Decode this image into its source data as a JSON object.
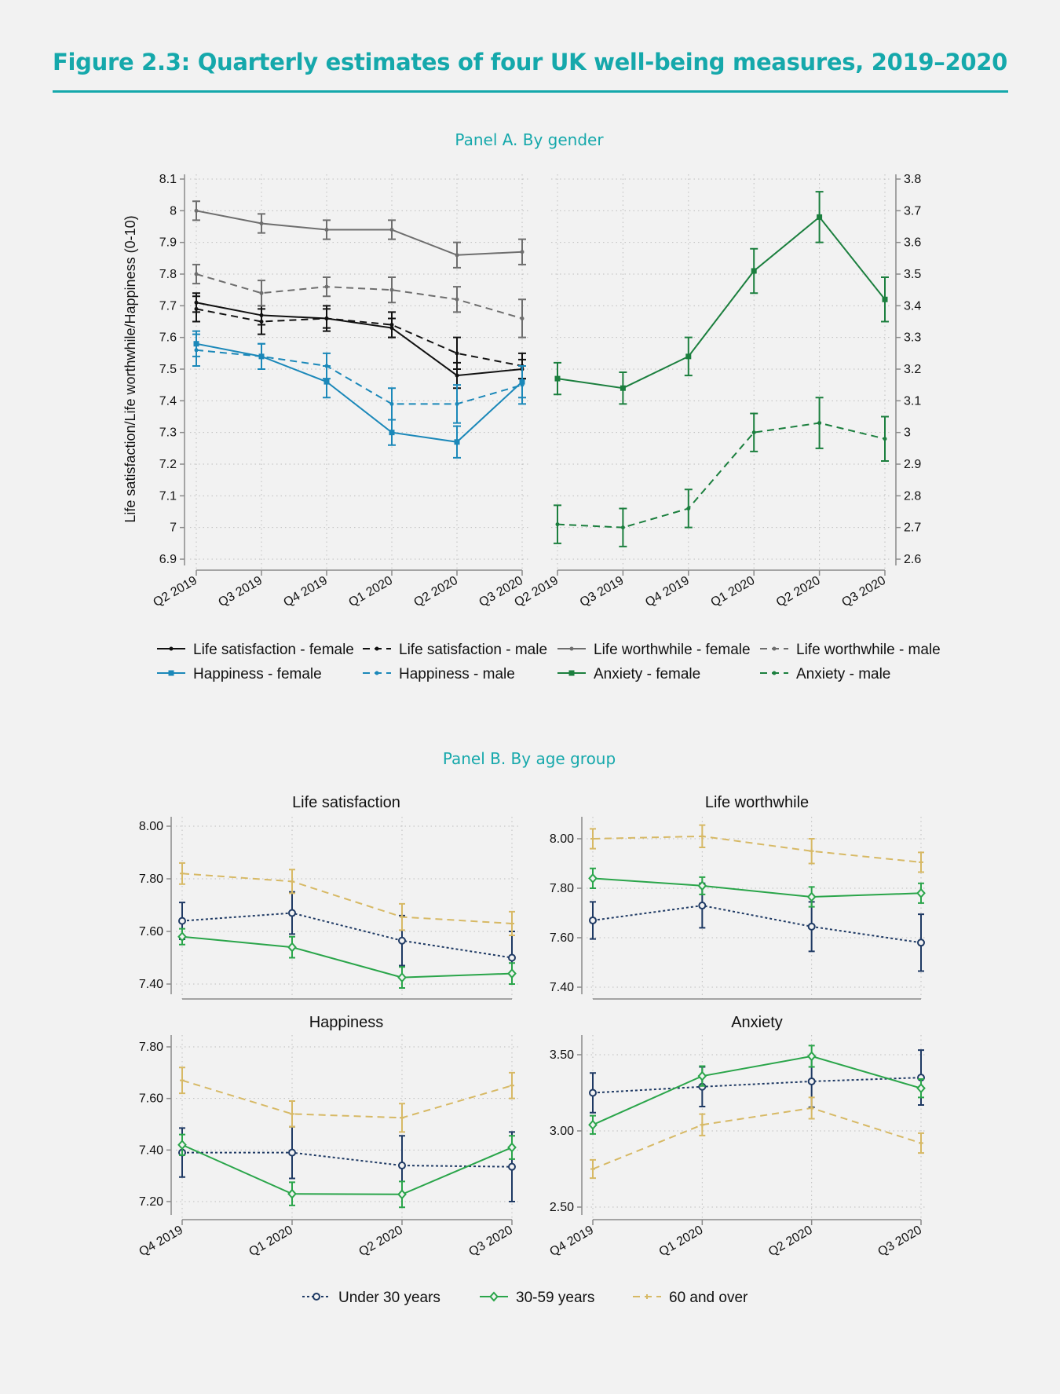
{
  "title": "Figure 2.3: Quarterly estimates of four UK well-being measures, 2019–2020",
  "panel_a_label": "Panel A. By gender",
  "panel_b_label": "Panel B. By age group",
  "colors": {
    "accent": "#15a8ab",
    "black": "#111111",
    "gray": "#6e6e6e",
    "blue": "#1b88b9",
    "dark_green": "#1b7f3e",
    "navy": "#1f3a64",
    "green": "#2aa54a",
    "gold": "#d7b965"
  },
  "chart_data": [
    {
      "id": "panelA-left",
      "type": "line",
      "ylabel": "Life satisfaction/Life worthwhile/Happiness (0-10)",
      "categories": [
        "Q2 2019",
        "Q3 2019",
        "Q4 2019",
        "Q1 2020",
        "Q2 2020",
        "Q3 2020"
      ],
      "ylim": [
        6.9,
        8.1
      ],
      "yticks": [
        "6.9",
        "7",
        "7.1",
        "7.2",
        "7.3",
        "7.4",
        "7.5",
        "7.6",
        "7.7",
        "7.8",
        "7.9",
        "8",
        "8.1"
      ],
      "axis_side": "left",
      "grid": true,
      "series": [
        {
          "name": "Life satisfaction - female",
          "color": "#111111",
          "dash": "solid",
          "marker": "dot",
          "values": [
            7.71,
            7.67,
            7.66,
            7.63,
            7.48,
            7.5
          ],
          "ci": [
            0.03,
            0.03,
            0.03,
            0.03,
            0.04,
            0.03
          ]
        },
        {
          "name": "Life satisfaction - male",
          "color": "#111111",
          "dash": "dashed",
          "marker": "dot",
          "values": [
            7.69,
            7.65,
            7.66,
            7.64,
            7.55,
            7.51
          ],
          "ci": [
            0.04,
            0.04,
            0.04,
            0.04,
            0.05,
            0.04
          ]
        },
        {
          "name": "Life worthwhile - female",
          "color": "#6e6e6e",
          "dash": "solid",
          "marker": "dot",
          "values": [
            8.0,
            7.96,
            7.94,
            7.94,
            7.86,
            7.87
          ],
          "ci": [
            0.03,
            0.03,
            0.03,
            0.03,
            0.04,
            0.04
          ]
        },
        {
          "name": "Life worthwhile - male",
          "color": "#6e6e6e",
          "dash": "dashed",
          "marker": "dot",
          "values": [
            7.8,
            7.74,
            7.76,
            7.75,
            7.72,
            7.66
          ],
          "ci": [
            0.03,
            0.04,
            0.03,
            0.04,
            0.04,
            0.06
          ]
        },
        {
          "name": "Happiness - female",
          "color": "#1b88b9",
          "dash": "solid",
          "marker": "square",
          "values": [
            7.58,
            7.54,
            7.46,
            7.3,
            7.27,
            7.46
          ],
          "ci": [
            0.04,
            0.04,
            0.05,
            0.04,
            0.05,
            0.05
          ]
        },
        {
          "name": "Happiness - male",
          "color": "#1b88b9",
          "dash": "dashed",
          "marker": "dot",
          "values": [
            7.56,
            7.54,
            7.51,
            7.39,
            7.39,
            7.45
          ],
          "ci": [
            0.05,
            0.04,
            0.04,
            0.05,
            0.06,
            0.06
          ]
        }
      ]
    },
    {
      "id": "panelA-right",
      "type": "line",
      "categories": [
        "Q2 2019",
        "Q3 2019",
        "Q4 2019",
        "Q1 2020",
        "Q2 2020",
        "Q3 2020"
      ],
      "ylim": [
        2.6,
        3.8
      ],
      "yticks": [
        "2.6",
        "2.7",
        "2.8",
        "2.9",
        "3",
        "3.1",
        "3.2",
        "3.3",
        "3.4",
        "3.5",
        "3.6",
        "3.7",
        "3.8"
      ],
      "axis_side": "right",
      "grid": true,
      "series": [
        {
          "name": "Anxiety - female",
          "color": "#1b7f3e",
          "dash": "solid",
          "marker": "square",
          "values": [
            3.17,
            3.14,
            3.24,
            3.51,
            3.68,
            3.42
          ],
          "ci": [
            0.05,
            0.05,
            0.06,
            0.07,
            0.08,
            0.07
          ]
        },
        {
          "name": "Anxiety - male",
          "color": "#1b7f3e",
          "dash": "dashed",
          "marker": "dot",
          "values": [
            2.71,
            2.7,
            2.76,
            3.0,
            3.03,
            2.98
          ],
          "ci": [
            0.06,
            0.06,
            0.06,
            0.06,
            0.08,
            0.07
          ]
        }
      ]
    },
    {
      "id": "panelB-ls",
      "type": "line",
      "title": "Life satisfaction",
      "categories": [
        "Q4 2019",
        "Q1 2020",
        "Q2 2020",
        "Q3 2020"
      ],
      "ylim": [
        7.4,
        8.0
      ],
      "yticks": [
        "7.40",
        "7.60",
        "7.80",
        "8.00"
      ],
      "show_xlabels": false,
      "grid": true,
      "series": [
        {
          "name": "Under 30 years",
          "color": "#1f3a64",
          "dash": "dotted",
          "marker": "circle",
          "values": [
            7.64,
            7.67,
            7.565,
            7.5
          ],
          "ci": [
            0.07,
            0.08,
            0.095,
            0.1
          ]
        },
        {
          "name": "30-59 years",
          "color": "#2aa54a",
          "dash": "solid",
          "marker": "diamond",
          "values": [
            7.58,
            7.54,
            7.425,
            7.44
          ],
          "ci": [
            0.03,
            0.04,
            0.04,
            0.04
          ]
        },
        {
          "name": "60 and over",
          "color": "#d7b965",
          "dash": "dashed",
          "marker": "plus",
          "values": [
            7.82,
            7.79,
            7.655,
            7.63
          ],
          "ci": [
            0.04,
            0.045,
            0.05,
            0.045
          ]
        }
      ]
    },
    {
      "id": "panelB-lw",
      "type": "line",
      "title": "Life worthwhile",
      "categories": [
        "Q4 2019",
        "Q1 2020",
        "Q2 2020",
        "Q3 2020"
      ],
      "ylim": [
        7.4,
        8.0
      ],
      "yticks": [
        "7.40",
        "7.60",
        "7.80",
        "8.00"
      ],
      "show_xlabels": false,
      "grid": true,
      "series": [
        {
          "name": "Under 30 years",
          "color": "#1f3a64",
          "dash": "dotted",
          "marker": "circle",
          "values": [
            7.67,
            7.73,
            7.645,
            7.58
          ],
          "ci": [
            0.075,
            0.09,
            0.1,
            0.115
          ]
        },
        {
          "name": "30-59 years",
          "color": "#2aa54a",
          "dash": "solid",
          "marker": "diamond",
          "values": [
            7.84,
            7.81,
            7.765,
            7.78
          ],
          "ci": [
            0.04,
            0.035,
            0.04,
            0.04
          ]
        },
        {
          "name": "60 and over",
          "color": "#d7b965",
          "dash": "dashed",
          "marker": "plus",
          "values": [
            8.0,
            8.01,
            7.95,
            7.905
          ],
          "ci": [
            0.04,
            0.045,
            0.05,
            0.04
          ]
        }
      ]
    },
    {
      "id": "panelB-hap",
      "type": "line",
      "title": "Happiness",
      "categories": [
        "Q4 2019",
        "Q1 2020",
        "Q2 2020",
        "Q3 2020"
      ],
      "ylim": [
        7.2,
        7.8
      ],
      "yticks": [
        "7.20",
        "7.40",
        "7.60",
        "7.80"
      ],
      "show_xlabels": true,
      "grid": true,
      "series": [
        {
          "name": "Under 30 years",
          "color": "#1f3a64",
          "dash": "dotted",
          "marker": "circle",
          "values": [
            7.39,
            7.39,
            7.34,
            7.335
          ],
          "ci": [
            0.095,
            0.1,
            0.115,
            0.135
          ]
        },
        {
          "name": "30-59 years",
          "color": "#2aa54a",
          "dash": "solid",
          "marker": "diamond",
          "values": [
            7.42,
            7.23,
            7.228,
            7.41
          ],
          "ci": [
            0.04,
            0.045,
            0.05,
            0.045
          ]
        },
        {
          "name": "60 and over",
          "color": "#d7b965",
          "dash": "dashed",
          "marker": "plus",
          "values": [
            7.67,
            7.54,
            7.525,
            7.65
          ],
          "ci": [
            0.05,
            0.05,
            0.055,
            0.05
          ]
        }
      ]
    },
    {
      "id": "panelB-anx",
      "type": "line",
      "title": "Anxiety",
      "categories": [
        "Q4 2019",
        "Q1 2020",
        "Q2 2020",
        "Q3 2020"
      ],
      "ylim": [
        2.5,
        3.5
      ],
      "yticks": [
        "2.50",
        "3.00",
        "3.50"
      ],
      "show_xlabels": true,
      "grid": true,
      "series": [
        {
          "name": "Under 30 years",
          "color": "#1f3a64",
          "dash": "dotted",
          "marker": "circle",
          "values": [
            3.25,
            3.29,
            3.325,
            3.35
          ],
          "ci": [
            0.13,
            0.13,
            0.17,
            0.18
          ]
        },
        {
          "name": "30-59 years",
          "color": "#2aa54a",
          "dash": "solid",
          "marker": "diamond",
          "values": [
            3.04,
            3.36,
            3.49,
            3.28
          ],
          "ci": [
            0.06,
            0.065,
            0.07,
            0.06
          ]
        },
        {
          "name": "60 and over",
          "color": "#d7b965",
          "dash": "dashed",
          "marker": "plus",
          "values": [
            2.75,
            3.04,
            3.15,
            2.92
          ],
          "ci": [
            0.06,
            0.07,
            0.07,
            0.065
          ]
        }
      ]
    }
  ],
  "legend_a": [
    "Life satisfaction - female",
    "Life satisfaction - male",
    "Life worthwhile - female",
    "Life worthwhile - male",
    "Happiness - female",
    "Happiness - male",
    "Anxiety - female",
    "Anxiety - male"
  ],
  "legend_b": [
    "Under 30 years",
    "30-59 years",
    "60 and over"
  ]
}
